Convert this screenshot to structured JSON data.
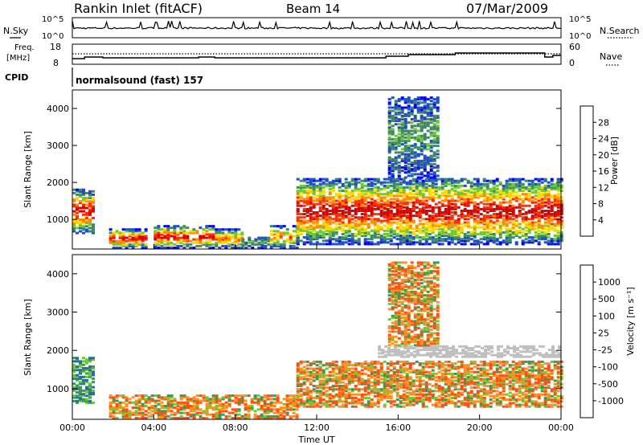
{
  "header": {
    "station": "Rankin Inlet (fitACF)",
    "beam": "Beam 14",
    "date": "07/Mar/2009"
  },
  "noise_panel": {
    "left_label": "N.Sky",
    "left_ticks": [
      "10^5",
      "10^0"
    ],
    "right_label": "N.Search",
    "right_ticks": [
      "10^5",
      "10^0"
    ]
  },
  "freq_panel": {
    "left_label_1": "Freq.",
    "left_label_2": "[MHz]",
    "left_ticks": [
      "18",
      "8"
    ],
    "right_label": "Nave",
    "right_ticks": [
      "60",
      "0"
    ]
  },
  "cpid_panel": {
    "label": "CPID",
    "text": "normalsound (fast) 157"
  },
  "chart_data": [
    {
      "type": "heatmap",
      "name": "power",
      "ylabel": "Slant Range [km]",
      "ylim": [
        200,
        4500
      ],
      "y_ticks": [
        "1000",
        "2000",
        "3000",
        "4000"
      ],
      "x_ticks": [
        "00:00",
        "04:00",
        "08:00",
        "12:00",
        "16:00",
        "20:00",
        "00:00"
      ],
      "xlim_hours": [
        0,
        24
      ],
      "colorbar": {
        "label": "Power [dB]",
        "tick_labels": [
          "4",
          "8",
          "12",
          "16",
          "20",
          "24",
          "28"
        ],
        "colors": [
          "#0000ff",
          "#1f4fc8",
          "#3f8a64",
          "#6ec832",
          "#ffd700",
          "#ff8c00",
          "#ff3000",
          "#dd0000"
        ]
      },
      "echo_regions": [
        {
          "start_h": 0.0,
          "end_h": 1.1,
          "range_km": [
            600,
            1800
          ],
          "level": "high"
        },
        {
          "start_h": 1.8,
          "end_h": 3.6,
          "range_km": [
            200,
            700
          ],
          "level": "high"
        },
        {
          "start_h": 4.0,
          "end_h": 7.0,
          "range_km": [
            200,
            800
          ],
          "level": "high"
        },
        {
          "start_h": 7.0,
          "end_h": 8.3,
          "range_km": [
            200,
            700
          ],
          "level": "medium"
        },
        {
          "start_h": 8.3,
          "end_h": 9.7,
          "range_km": [
            200,
            500
          ],
          "level": "low"
        },
        {
          "start_h": 9.7,
          "end_h": 11.0,
          "range_km": [
            200,
            800
          ],
          "level": "medium"
        },
        {
          "start_h": 11.0,
          "end_h": 24.0,
          "range_km": [
            300,
            2100
          ],
          "level": "high"
        },
        {
          "start_h": 15.5,
          "end_h": 18.0,
          "range_km": [
            2100,
            4300
          ],
          "level": "low"
        }
      ]
    },
    {
      "type": "heatmap",
      "name": "velocity",
      "ylabel": "Slant Range [km]",
      "ylim": [
        200,
        4500
      ],
      "y_ticks": [
        "1000",
        "2000",
        "3000",
        "4000"
      ],
      "x_ticks": [
        "00:00",
        "04:00",
        "08:00",
        "12:00",
        "16:00",
        "20:00",
        "00:00"
      ],
      "xlim_hours": [
        0,
        24
      ],
      "xlabel": "Time UT",
      "colorbar": {
        "label": "Velocity [m s⁻¹]",
        "tick_labels": [
          "1000",
          "500",
          "100",
          "25",
          "-25",
          "-100",
          "-500",
          "-1000"
        ],
        "colors": [
          "#0030c8",
          "#2a6ea0",
          "#3a9a50",
          "#66cc33",
          "#c0c0c0",
          "#ffd040",
          "#ff9020",
          "#ff5010",
          "#ee0000"
        ]
      },
      "echo_regions": [
        {
          "start_h": 0.0,
          "end_h": 1.1,
          "range_km": [
            600,
            1800
          ],
          "velocity": "toward"
        },
        {
          "start_h": 1.8,
          "end_h": 11.0,
          "range_km": [
            200,
            800
          ],
          "velocity": "away"
        },
        {
          "start_h": 11.0,
          "end_h": 24.0,
          "range_km": [
            500,
            1700
          ],
          "velocity": "away"
        },
        {
          "start_h": 15.0,
          "end_h": 24.0,
          "range_km": [
            1800,
            2100
          ],
          "velocity": "ground"
        },
        {
          "start_h": 15.5,
          "end_h": 18.0,
          "range_km": [
            2100,
            4300
          ],
          "velocity": "away"
        }
      ]
    }
  ]
}
